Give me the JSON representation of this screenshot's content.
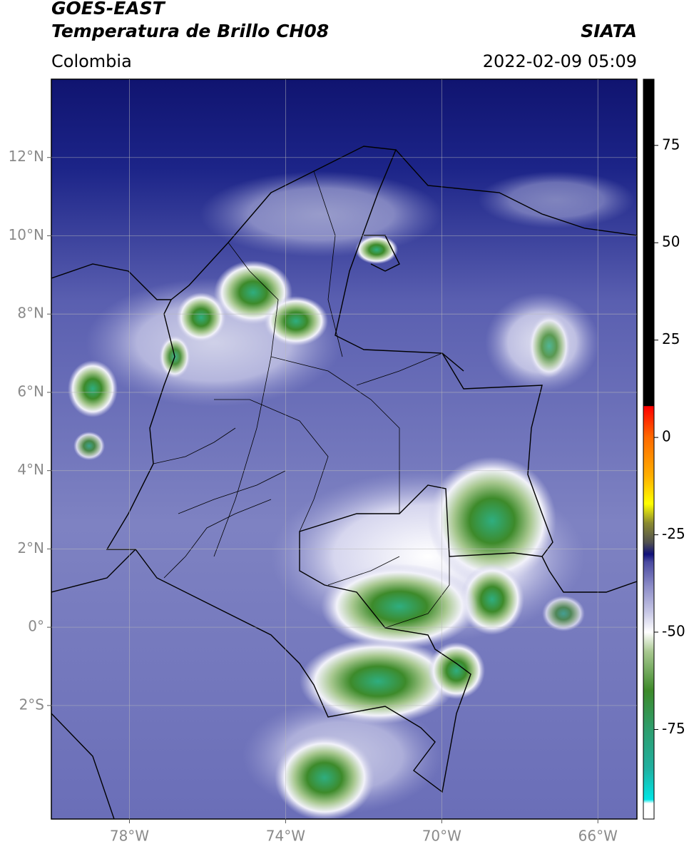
{
  "chart_data": {
    "type": "map",
    "title": "GOES-EAST",
    "subtitle": "Temperatura de Brillo CH08",
    "source": "SIATA",
    "region": "Colombia",
    "datetime": "2022-02-09 05:09",
    "xlim": [
      -80,
      -65
    ],
    "ylim": [
      -4.9,
      14
    ],
    "xticks": [
      {
        "value": -78,
        "label": "78°W"
      },
      {
        "value": -74,
        "label": "74°W"
      },
      {
        "value": -70,
        "label": "70°W"
      },
      {
        "value": -66,
        "label": "66°W"
      }
    ],
    "yticks": [
      {
        "value": 12,
        "label": "12°N"
      },
      {
        "value": 10,
        "label": "10°N"
      },
      {
        "value": 8,
        "label": "8°N"
      },
      {
        "value": 6,
        "label": "6°N"
      },
      {
        "value": 4,
        "label": "4°N"
      },
      {
        "value": 2,
        "label": "2°N"
      },
      {
        "value": 0,
        "label": "0°"
      },
      {
        "value": -2,
        "label": "2°S"
      }
    ],
    "grid": true,
    "colorbar": {
      "lim": [
        -98,
        92
      ],
      "ticks": [
        75,
        50,
        25,
        0,
        -25,
        -50,
        -75
      ],
      "stops": [
        {
          "value": -98,
          "color": "#ffffff"
        },
        {
          "value": -94,
          "color": "#ffffff"
        },
        {
          "value": -93,
          "color": "#00e5e5"
        },
        {
          "value": -85,
          "color": "#20b0a0"
        },
        {
          "value": -75,
          "color": "#2e9e6e"
        },
        {
          "value": -65,
          "color": "#3d8a2a"
        },
        {
          "value": -55,
          "color": "#a8c890"
        },
        {
          "value": -50,
          "color": "#ffffff"
        },
        {
          "value": -45,
          "color": "#c8c8e6"
        },
        {
          "value": -38,
          "color": "#8a8ac6"
        },
        {
          "value": -32,
          "color": "#4a4aa0"
        },
        {
          "value": -30,
          "color": "#10107a"
        },
        {
          "value": -27,
          "color": "#505050"
        },
        {
          "value": -22,
          "color": "#8a8a30"
        },
        {
          "value": -17,
          "color": "#ffff00"
        },
        {
          "value": -10,
          "color": "#ffb000"
        },
        {
          "value": 0,
          "color": "#ff6a00"
        },
        {
          "value": 8,
          "color": "#ff0000"
        },
        {
          "value": 8.1,
          "color": "#000000"
        },
        {
          "value": 92,
          "color": "#000000"
        }
      ]
    }
  }
}
